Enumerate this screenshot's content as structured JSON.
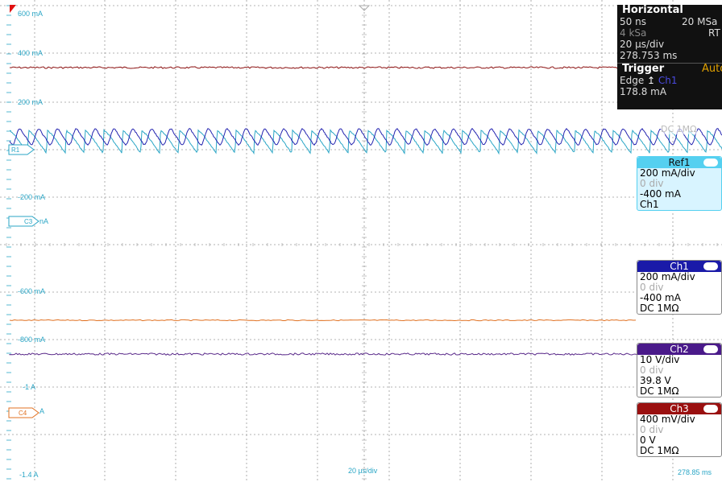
{
  "yaxis_labels": [
    "600 mA",
    "400 mA",
    "200 mA",
    "-200 mA",
    "nA",
    "-600 mA",
    "-800 mA",
    "-1 A",
    "A",
    "-1.4 A"
  ],
  "markers": {
    "r1": "R1",
    "c3": "C3",
    "c4": "C4"
  },
  "timebase_label": "20 µs/div",
  "time_readout": "278.85 ms",
  "horizontal": {
    "title": "Horizontal",
    "resolution": "50 ns",
    "sample_rate": "20 MSa",
    "record_length": "4 kSa",
    "mode": "RT",
    "time_scale": "20 µs/div",
    "position": "278.753 ms"
  },
  "trigger": {
    "title": "Trigger",
    "mode": "Auto",
    "type": "Edge",
    "source": "Ch1",
    "level": "178.8 mA"
  },
  "ch1_overlay_label": "DC 1MΩ",
  "channels": [
    {
      "name": "Ref1",
      "color": "#55d0f0",
      "scale": "200 mA/div",
      "position": "0 div",
      "offset": "-400 mA",
      "extra": "Ch1"
    },
    {
      "name": "Ch1",
      "color": "#1a1aa8",
      "scale": "200 mA/div",
      "position": "0 div",
      "offset": "-400 mA",
      "extra": "DC 1MΩ"
    },
    {
      "name": "Ch2",
      "color": "#4a1a8a",
      "scale": "10 V/div",
      "position": "0 div",
      "offset": "39.8 V",
      "extra": "DC 1MΩ"
    },
    {
      "name": "Ch3",
      "color": "#9a1010",
      "scale": "400 mV/div",
      "position": "0 div",
      "offset": "0 V",
      "extra": "DC 1MΩ"
    }
  ],
  "colors": {
    "grid": "#9a9a9a",
    "label": "#2aa6c6",
    "red_trace": "#8b1010",
    "ch1_trace": "#2424b0",
    "ref1_trace": "#2aa6c6",
    "orange_trace": "#e07020",
    "purple_trace": "#5a2a8a",
    "trigger_marker": "#e01010"
  }
}
